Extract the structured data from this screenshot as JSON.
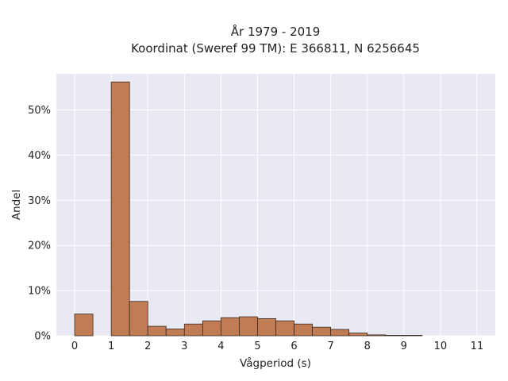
{
  "chart_data": {
    "type": "bar",
    "title_lines": [
      "År 1979 - 2019",
      "Koordinat (Sweref 99 TM): E 366811, N 6256645"
    ],
    "xlabel": "Vågperiod (s)",
    "ylabel": "Andel",
    "bin_width": 0.5,
    "bins": [
      {
        "x0": 0.0,
        "value": 0.048
      },
      {
        "x0": 0.5,
        "value": 0.0
      },
      {
        "x0": 1.0,
        "value": 0.562
      },
      {
        "x0": 1.5,
        "value": 0.076
      },
      {
        "x0": 2.0,
        "value": 0.021
      },
      {
        "x0": 2.5,
        "value": 0.015
      },
      {
        "x0": 3.0,
        "value": 0.026
      },
      {
        "x0": 3.5,
        "value": 0.033
      },
      {
        "x0": 4.0,
        "value": 0.04
      },
      {
        "x0": 4.5,
        "value": 0.042
      },
      {
        "x0": 5.0,
        "value": 0.038
      },
      {
        "x0": 5.5,
        "value": 0.033
      },
      {
        "x0": 6.0,
        "value": 0.026
      },
      {
        "x0": 6.5,
        "value": 0.019
      },
      {
        "x0": 7.0,
        "value": 0.014
      },
      {
        "x0": 7.5,
        "value": 0.006
      },
      {
        "x0": 8.0,
        "value": 0.002
      },
      {
        "x0": 8.5,
        "value": 0.001
      },
      {
        "x0": 9.0,
        "value": 0.001
      }
    ],
    "xlim": [
      -0.5,
      11.5
    ],
    "ylim": [
      0,
      0.58
    ],
    "xticks": [
      0,
      1,
      2,
      3,
      4,
      5,
      6,
      7,
      8,
      9,
      10,
      11
    ],
    "yticks": [
      0,
      0.1,
      0.2,
      0.3,
      0.4,
      0.5
    ],
    "ytick_labels": [
      "0%",
      "10%",
      "20%",
      "30%",
      "40%",
      "50%"
    ],
    "grid": true,
    "colors": {
      "bar_fill": "#c17c56",
      "bar_edge": "#3a2a1e",
      "plot_background": "#e8e9f2",
      "grid": "#ffffff"
    }
  }
}
